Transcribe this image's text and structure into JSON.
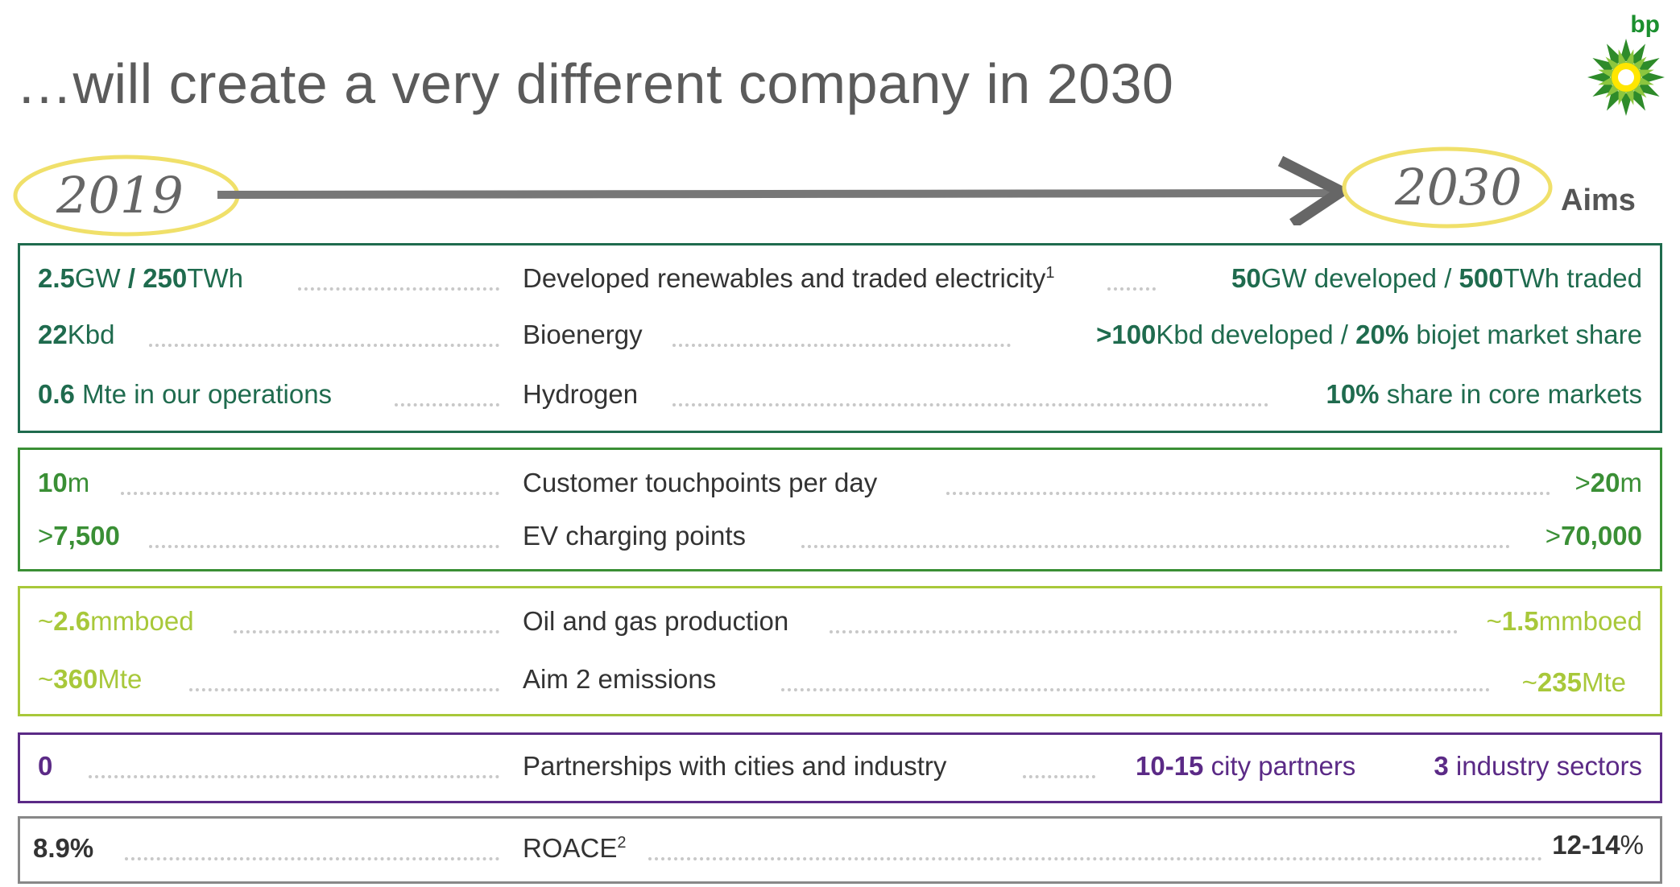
{
  "title": "…will create a very different company in 2030",
  "logo_text": "bp",
  "timeline": {
    "start": "2019",
    "end": "2030",
    "aims": "Aims"
  },
  "colors": {
    "box1": "#1f6b4e",
    "box2": "#3a8f35",
    "box3": "#a8c83a",
    "box4": "#5b2a86",
    "box5": "#888888"
  },
  "box1": {
    "rows": [
      {
        "left_b1": "2.5",
        "left_1": "GW",
        "left_b2": " / 250",
        "left_2": "TWh",
        "metric": "Developed renewables and traded electricity",
        "metric_sup": "1",
        "right_b1": "50",
        "right_1": "GW developed / ",
        "right_b2": "500",
        "right_2": "TWh traded"
      },
      {
        "left_b1": "22",
        "left_1": "Kbd",
        "metric": "Bioenergy",
        "right_b1": ">100",
        "right_1": "Kbd developed / ",
        "right_b2": "20%",
        "right_2": " biojet market share"
      },
      {
        "left_b1": "0.6",
        "left_1": " Mte in our operations",
        "metric": "Hydrogen",
        "right_b1": "10%",
        "right_1": " share in core markets"
      }
    ]
  },
  "box2": {
    "rows": [
      {
        "left_b1": "10",
        "left_1": "m",
        "metric": "Customer touchpoints per day",
        "right_1": ">",
        "right_b1": "20",
        "right_2": "m"
      },
      {
        "left_1": ">",
        "left_b1": "7,500",
        "metric": "EV charging points",
        "right_1": ">",
        "right_b1": "70,000"
      }
    ]
  },
  "box3": {
    "rows": [
      {
        "left_1": "~",
        "left_b1": "2.6",
        "left_2": "mmboed",
        "metric": "Oil and gas production",
        "right_1": "~",
        "right_b1": "1.5",
        "right_2": "mmboed"
      },
      {
        "left_1": "~",
        "left_b1": "360",
        "left_2": "Mte",
        "metric": "Aim 2 emissions",
        "right_1": "~",
        "right_b1": "235",
        "right_2": "Mte"
      }
    ]
  },
  "box4": {
    "rows": [
      {
        "left_b1": "0",
        "metric": "Partnerships with cities and industry",
        "mid_b1": "10-15",
        "mid_1": " city partners",
        "right_b1": "3",
        "right_1": " industry sectors"
      }
    ]
  },
  "box5": {
    "rows": [
      {
        "left_b1": "8.9%",
        "metric": "ROACE",
        "metric_sup": "2",
        "right_b1": "12-14",
        "right_1": "%"
      }
    ]
  }
}
